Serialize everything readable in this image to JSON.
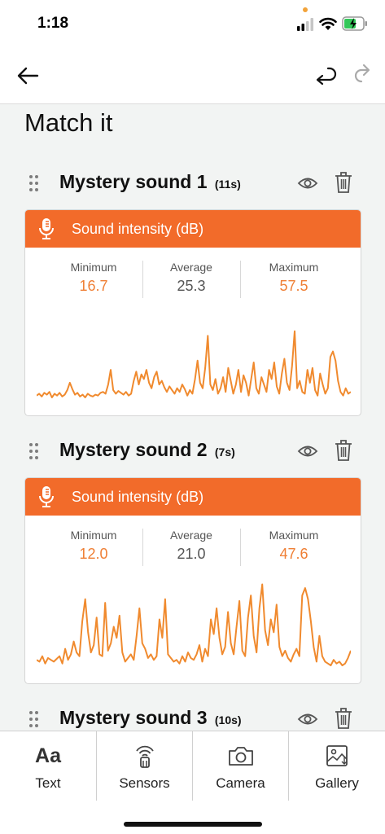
{
  "status_bar": {
    "time": "1:18"
  },
  "page": {
    "title": "Match it"
  },
  "colors": {
    "accent": "#f26b2a",
    "wave": "#f08a2e",
    "value": "#ef7f35"
  },
  "sounds": [
    {
      "title": "Mystery sound 1",
      "duration": "(11s)",
      "card_label": "Sound intensity (dB)",
      "stats": [
        {
          "label": "Minimum",
          "value": "16.7"
        },
        {
          "label": "Average",
          "value": "25.3"
        },
        {
          "label": "Maximum",
          "value": "57.5"
        }
      ],
      "waveform": [
        10,
        12,
        9,
        13,
        11,
        14,
        8,
        12,
        10,
        13,
        9,
        11,
        16,
        24,
        17,
        11,
        13,
        9,
        11,
        8,
        12,
        10,
        9,
        11,
        10,
        13,
        14,
        12,
        22,
        38,
        16,
        12,
        15,
        13,
        11,
        14,
        10,
        12,
        26,
        36,
        22,
        33,
        28,
        38,
        24,
        18,
        30,
        36,
        22,
        26,
        19,
        14,
        20,
        16,
        12,
        18,
        14,
        22,
        17,
        10,
        16,
        12,
        28,
        48,
        24,
        18,
        40,
        75,
        22,
        16,
        28,
        12,
        18,
        30,
        14,
        40,
        26,
        12,
        22,
        38,
        14,
        32,
        24,
        10,
        28,
        46,
        18,
        12,
        30,
        22,
        14,
        38,
        28,
        46,
        20,
        12,
        34,
        50,
        24,
        16,
        42,
        80,
        18,
        26,
        14,
        12,
        38,
        24,
        40,
        16,
        10,
        34,
        22,
        12,
        18,
        52,
        58,
        48,
        26,
        14,
        10,
        18,
        12,
        14
      ]
    },
    {
      "title": "Mystery sound 2",
      "duration": "(7s)",
      "card_label": "Sound intensity (dB)",
      "stats": [
        {
          "label": "Minimum",
          "value": "12.0"
        },
        {
          "label": "Average",
          "value": "21.0"
        },
        {
          "label": "Maximum",
          "value": "47.6"
        }
      ],
      "waveform": [
        14,
        12,
        18,
        10,
        16,
        14,
        12,
        15,
        18,
        10,
        26,
        14,
        20,
        34,
        22,
        18,
        56,
        80,
        44,
        22,
        30,
        60,
        20,
        18,
        76,
        24,
        32,
        50,
        38,
        62,
        22,
        12,
        16,
        20,
        14,
        40,
        70,
        32,
        26,
        16,
        20,
        14,
        18,
        58,
        38,
        80,
        20,
        16,
        12,
        14,
        10,
        18,
        12,
        22,
        16,
        14,
        20,
        30,
        12,
        26,
        18,
        58,
        42,
        70,
        38,
        20,
        28,
        66,
        32,
        20,
        50,
        78,
        24,
        18,
        60,
        84,
        40,
        22,
        70,
        96,
        46,
        30,
        58,
        44,
        74,
        28,
        18,
        24,
        16,
        12,
        20,
        26,
        18,
        84,
        92,
        80,
        56,
        28,
        12,
        40,
        18,
        12,
        10,
        8,
        14,
        10,
        12,
        8,
        10,
        16,
        24
      ]
    }
  ],
  "next_sound": {
    "title": "Mystery sound 3",
    "duration": "(10s)"
  },
  "tabs": [
    {
      "glyph": "Aa",
      "label": "Text",
      "icon": "text-icon"
    },
    {
      "label": "Sensors",
      "icon": "sensor-icon"
    },
    {
      "label": "Camera",
      "icon": "camera-icon"
    },
    {
      "label": "Gallery",
      "icon": "gallery-icon"
    }
  ]
}
